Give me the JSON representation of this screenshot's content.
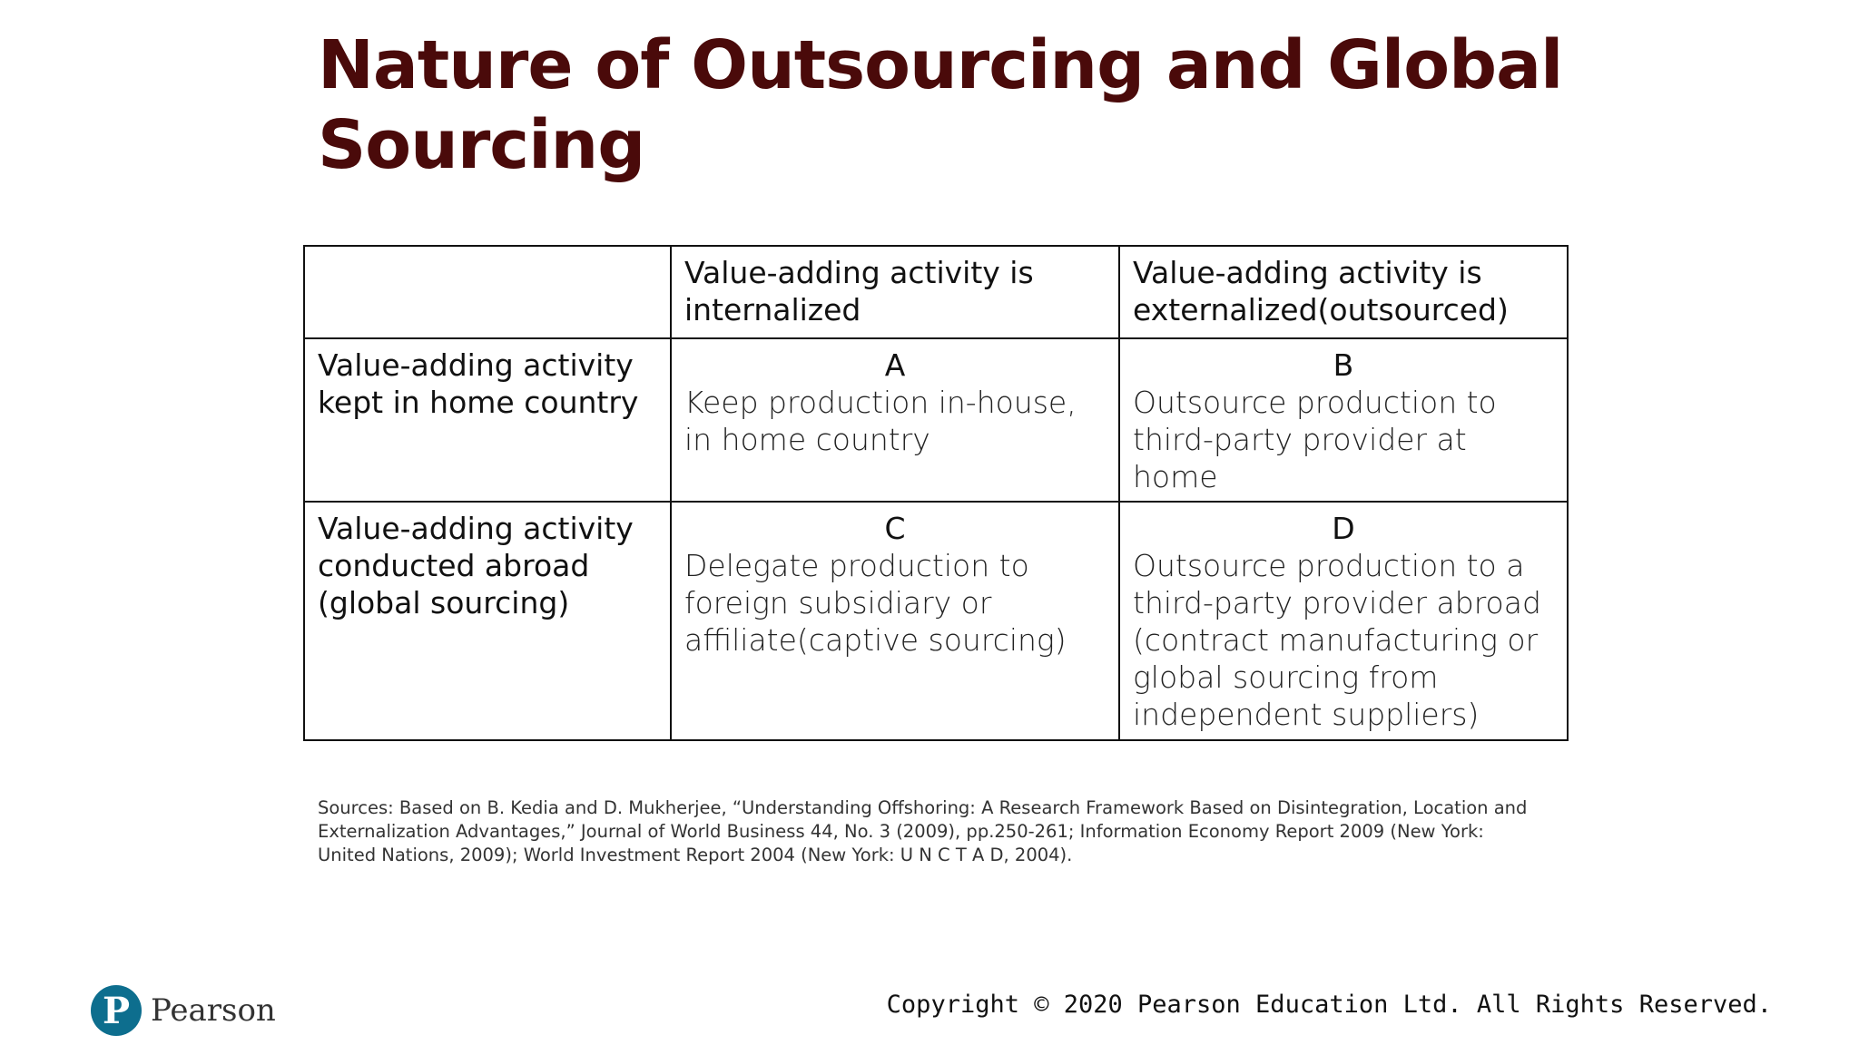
{
  "slide": {
    "title": "Nature of Outsourcing and Global Sourcing"
  },
  "table": {
    "header": {
      "corner": "",
      "col1": "Value-adding activity is internalized",
      "col2": "Value-adding activity is externalized(outsourced)"
    },
    "rows": [
      {
        "label": "Value-adding activity kept in home country",
        "cells": [
          {
            "letter": "A",
            "text": "Keep production in-house, in home country"
          },
          {
            "letter": "B",
            "text": "Outsource production to third-party provider at home"
          }
        ]
      },
      {
        "label": "Value-adding activity conducted abroad (global sourcing)",
        "cells": [
          {
            "letter": "C",
            "text": "Delegate production to foreign subsidiary or affiliate(captive sourcing)"
          },
          {
            "letter": "D",
            "text": "Outsource production to a third-party provider abroad (contract manufacturing or global sourcing from independent suppliers)"
          }
        ]
      }
    ]
  },
  "sources": "Sources: Based on B. Kedia and D. Mukherjee, “Understanding Offshoring: A Research Framework Based on Disintegration, Location and Externalization Advantages,” Journal of World Business 44, No. 3 (2009), pp.250-261; Information Economy Report 2009 (New York: United Nations, 2009); World Investment Report 2004 (New York: U N C T A D, 2004).",
  "footer": {
    "logo_letter": "P",
    "logo_text": "Pearson",
    "copyright": "Copyright © 2020 Pearson Education Ltd. All Rights Reserved."
  },
  "colors": {
    "title": "#4a0a0a",
    "logo": "#0d6e8e"
  }
}
